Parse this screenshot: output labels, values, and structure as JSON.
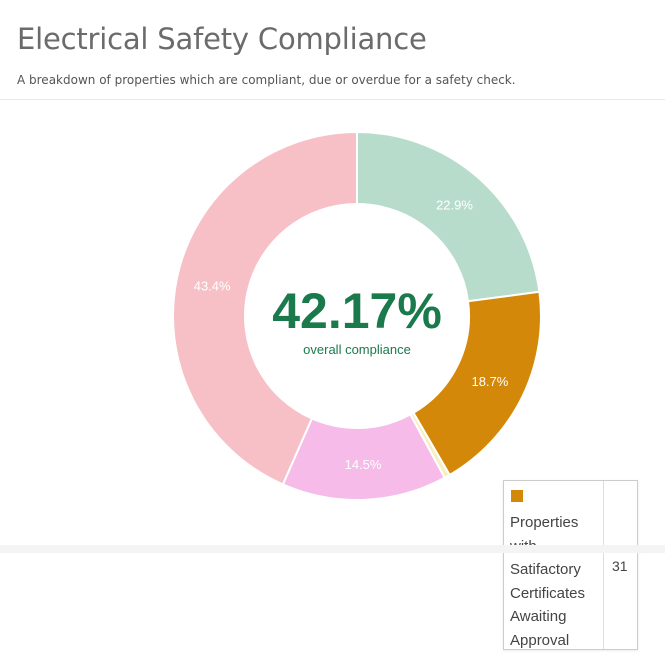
{
  "header": {
    "title": "Electrical Safety Compliance",
    "subtitle": "A breakdown of properties which are compliant, due or overdue for a safety check."
  },
  "chart_data": {
    "type": "donut",
    "slices": [
      {
        "label_text": "22.9%",
        "value": 22.9,
        "color": "#b8dccc"
      },
      {
        "label_text": "18.7%",
        "value": 18.7,
        "color": "#d4880a"
      },
      {
        "label_text": "",
        "value": 0.5,
        "color": "#f7efc4"
      },
      {
        "label_text": "14.5%",
        "value": 14.5,
        "color": "#f6bbe8"
      },
      {
        "label_text": "43.4%",
        "value": 43.4,
        "color": "#f7c0c6"
      }
    ],
    "center": {
      "value": "42.17%",
      "label": "overall compliance"
    },
    "tooltip": {
      "label": "Properties with Satifactory Certificates Awaiting Approval",
      "value": "31",
      "color": "#d4880a"
    }
  }
}
